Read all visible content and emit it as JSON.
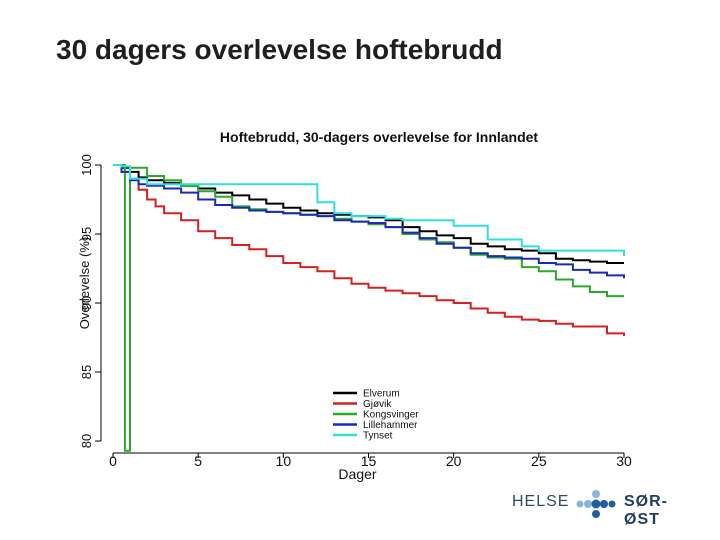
{
  "slide": {
    "title": "30 dagers overlevelse hoftebrudd"
  },
  "logo": {
    "left_text": "HELSE",
    "right_text": "SØR-ØST",
    "colors": {
      "dots_light": "#8ab4d8",
      "dots_dark": "#1f5fa0",
      "text": "#2b4a6f"
    },
    "icon_name": "helse-sor-ost-dots-logo"
  },
  "chart_data": {
    "type": "line",
    "step": true,
    "title": "Hoftebrudd, 30-dagers overlevelse for Innlandet",
    "xlabel": "Dager",
    "ylabel": "Overlevelse (%)",
    "xlim": [
      0,
      30
    ],
    "ylim": [
      80,
      100
    ],
    "xticks": [
      "0",
      "5",
      "10",
      "15",
      "20",
      "25",
      "30"
    ],
    "yticks": [
      "80",
      "85",
      "90",
      "95",
      "100"
    ],
    "grid": false,
    "legend_position": "bottom-center",
    "series": [
      {
        "name": "Elverum",
        "color": "#000000",
        "x": [
          0,
          0.6,
          1.0,
          1.5,
          2.0,
          3.0,
          4.0,
          5.0,
          6.0,
          7.0,
          8.0,
          9.0,
          10.0,
          11.0,
          12.0,
          13.0,
          14.0,
          15.0,
          16.0,
          17.0,
          18.0,
          19.0,
          20.0,
          21.0,
          22.0,
          23.0,
          24.0,
          25.0,
          26.0,
          27.0,
          28.0,
          29.0,
          30.0
        ],
        "y": [
          100,
          99.8,
          99.5,
          99.1,
          98.9,
          98.7,
          98.5,
          98.3,
          98.0,
          97.8,
          97.5,
          97.2,
          96.9,
          96.7,
          96.5,
          96.4,
          96.3,
          96.2,
          96.0,
          95.5,
          95.2,
          94.9,
          94.7,
          94.3,
          94.1,
          93.9,
          93.8,
          93.6,
          93.2,
          93.1,
          93.0,
          92.9,
          92.9
        ]
      },
      {
        "name": "Gjøvik",
        "color": "#d62020",
        "x": [
          0,
          0.5,
          1.0,
          1.5,
          2.0,
          2.5,
          3.0,
          4.0,
          5.0,
          6.0,
          7.0,
          8.0,
          9.0,
          10.0,
          11.0,
          12.0,
          13.0,
          14.0,
          15.0,
          16.0,
          17.0,
          18.0,
          19.0,
          20.0,
          21.0,
          22.0,
          23.0,
          24.0,
          25.0,
          26.0,
          27.0,
          28.0,
          29.0,
          30.0
        ],
        "y": [
          100,
          99.5,
          99.0,
          98.2,
          97.5,
          97.0,
          96.5,
          96.0,
          95.2,
          94.7,
          94.2,
          93.9,
          93.4,
          92.9,
          92.6,
          92.3,
          91.8,
          91.4,
          91.1,
          90.9,
          90.7,
          90.5,
          90.2,
          90.0,
          89.6,
          89.3,
          89.0,
          88.8,
          88.7,
          88.5,
          88.3,
          88.3,
          87.8,
          87.6
        ]
      },
      {
        "name": "Kongsvinger",
        "color": "#2aaa2a",
        "x": [
          0,
          0.4,
          0.6,
          0.7,
          1.0,
          2.0,
          3.0,
          4.0,
          5.0,
          6.0,
          7.0,
          8.0,
          9.0,
          10.0,
          11.0,
          12.0,
          13.0,
          14.0,
          15.0,
          16.0,
          17.0,
          18.0,
          19.0,
          20.0,
          21.0,
          22.0,
          23.0,
          24.0,
          25.0,
          26.0,
          27.0,
          28.0,
          29.0,
          30.0
        ],
        "y": [
          100,
          100,
          100,
          79.3,
          99.8,
          99.2,
          98.9,
          98.5,
          98.1,
          97.7,
          97.0,
          96.8,
          96.6,
          96.5,
          96.4,
          96.3,
          96.1,
          95.9,
          95.7,
          95.5,
          95.0,
          94.6,
          94.4,
          94.0,
          93.5,
          93.3,
          93.2,
          92.6,
          92.3,
          91.7,
          91.2,
          90.8,
          90.5,
          90.5
        ]
      },
      {
        "name": "Lillehammer",
        "color": "#1a2ab8",
        "x": [
          0,
          0.5,
          1.0,
          1.5,
          2.0,
          3.0,
          4.0,
          5.0,
          6.0,
          7.0,
          8.0,
          9.0,
          10.0,
          11.0,
          12.0,
          13.0,
          14.0,
          15.0,
          16.0,
          17.0,
          18.0,
          19.0,
          20.0,
          21.0,
          22.0,
          23.0,
          24.0,
          25.0,
          26.0,
          27.0,
          28.0,
          29.0,
          30.0
        ],
        "y": [
          100,
          99.5,
          98.9,
          98.6,
          98.5,
          98.3,
          98.0,
          97.5,
          97.1,
          96.9,
          96.7,
          96.6,
          96.5,
          96.4,
          96.3,
          96.0,
          95.9,
          95.8,
          95.5,
          95.1,
          94.7,
          94.3,
          94.0,
          93.6,
          93.4,
          93.3,
          93.2,
          92.9,
          92.8,
          92.4,
          92.2,
          92.0,
          91.8
        ]
      },
      {
        "name": "Tynset",
        "color": "#2de0e0",
        "x": [
          0,
          0.5,
          1.0,
          2.0,
          3.0,
          4.0,
          5.0,
          6.0,
          7.0,
          8.0,
          9.0,
          10.0,
          11.0,
          12.0,
          13.0,
          14.0,
          15.0,
          16.0,
          17.0,
          18.0,
          19.0,
          20.0,
          21.0,
          22.0,
          23.0,
          24.0,
          25.0,
          26.0,
          27.0,
          28.0,
          29.0,
          30.0
        ],
        "y": [
          100,
          99.9,
          99.0,
          98.6,
          98.6,
          98.6,
          98.6,
          98.6,
          98.6,
          98.6,
          98.6,
          98.6,
          98.6,
          97.3,
          96.5,
          96.3,
          96.3,
          96.1,
          96.0,
          96.0,
          96.0,
          95.6,
          95.6,
          94.6,
          94.6,
          94.1,
          93.8,
          93.8,
          93.8,
          93.8,
          93.8,
          93.4
        ]
      }
    ]
  }
}
